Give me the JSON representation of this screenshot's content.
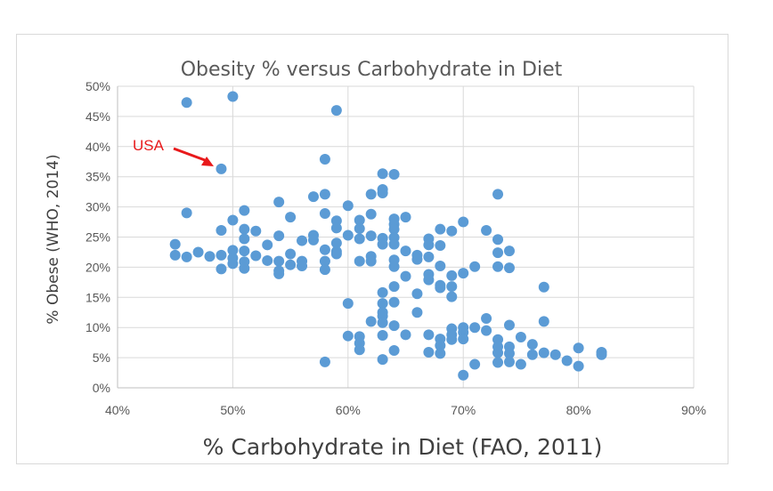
{
  "chart_data": {
    "type": "scatter",
    "title": "Obesity % versus Carbohydrate in Diet",
    "xlabel": "% Carbohydrate in Diet (FAO, 2011)",
    "ylabel": "% Obese (WHO, 2014)",
    "xlim": [
      40,
      90
    ],
    "ylim": [
      0,
      50
    ],
    "x_ticks": [
      40,
      50,
      60,
      70,
      80,
      90
    ],
    "y_ticks": [
      0,
      5,
      10,
      15,
      20,
      25,
      30,
      35,
      40,
      45,
      50
    ],
    "x_tick_labels": [
      "40%",
      "50%",
      "60%",
      "70%",
      "80%",
      "90%"
    ],
    "y_tick_labels": [
      "0%",
      "5%",
      "10%",
      "15%",
      "20%",
      "25%",
      "30%",
      "35%",
      "40%",
      "45%",
      "50%"
    ],
    "grid": true,
    "legend": "none",
    "marker_color": "#5b9bd5",
    "annotation": {
      "text": "USA",
      "color": "#e8191b",
      "x": 49,
      "y": 36.3
    },
    "points": [
      [
        46,
        47.3
      ],
      [
        50,
        48.3
      ],
      [
        59,
        46.0
      ],
      [
        58,
        37.9
      ],
      [
        49,
        36.3
      ],
      [
        63,
        35.5
      ],
      [
        64,
        35.4
      ],
      [
        63,
        32.9
      ],
      [
        63,
        32.3
      ],
      [
        58,
        32.1
      ],
      [
        62,
        32.1
      ],
      [
        73,
        32.1
      ],
      [
        57,
        31.7
      ],
      [
        54,
        30.8
      ],
      [
        60,
        30.2
      ],
      [
        46,
        29.0
      ],
      [
        51,
        29.4
      ],
      [
        58,
        28.9
      ],
      [
        62,
        28.8
      ],
      [
        55,
        28.3
      ],
      [
        64,
        28.0
      ],
      [
        65,
        28.3
      ],
      [
        50,
        27.8
      ],
      [
        59,
        27.7
      ],
      [
        61,
        27.8
      ],
      [
        70,
        27.5
      ],
      [
        64,
        27.1
      ],
      [
        59,
        26.5
      ],
      [
        61,
        26.4
      ],
      [
        49,
        26.1
      ],
      [
        51,
        26.3
      ],
      [
        52,
        26.0
      ],
      [
        64,
        26.3
      ],
      [
        68,
        26.3
      ],
      [
        69,
        26.0
      ],
      [
        72,
        26.1
      ],
      [
        57,
        25.3
      ],
      [
        62,
        25.2
      ],
      [
        54,
        25.2
      ],
      [
        60,
        25.3
      ],
      [
        63,
        24.8
      ],
      [
        64,
        24.9
      ],
      [
        67,
        24.7
      ],
      [
        73,
        24.6
      ],
      [
        51,
        24.7
      ],
      [
        56,
        24.4
      ],
      [
        61,
        24.7
      ],
      [
        45,
        23.8
      ],
      [
        53,
        23.7
      ],
      [
        57,
        24.5
      ],
      [
        59,
        24.0
      ],
      [
        63,
        23.8
      ],
      [
        64,
        23.8
      ],
      [
        67,
        23.7
      ],
      [
        68,
        23.6
      ],
      [
        47,
        22.5
      ],
      [
        50,
        22.8
      ],
      [
        51,
        22.7
      ],
      [
        58,
        22.9
      ],
      [
        59,
        22.6
      ],
      [
        65,
        22.7
      ],
      [
        66,
        22.0
      ],
      [
        55,
        22.2
      ],
      [
        45,
        22.0
      ],
      [
        46,
        21.7
      ],
      [
        48,
        21.8
      ],
      [
        49,
        22.0
      ],
      [
        52,
        21.9
      ],
      [
        59,
        22.2
      ],
      [
        62,
        21.8
      ],
      [
        67,
        21.7
      ],
      [
        73,
        22.4
      ],
      [
        74,
        22.7
      ],
      [
        50,
        21.5
      ],
      [
        53,
        21.1
      ],
      [
        54,
        21.0
      ],
      [
        56,
        21.0
      ],
      [
        58,
        21.0
      ],
      [
        61,
        21.0
      ],
      [
        62,
        21.0
      ],
      [
        64,
        21.2
      ],
      [
        66,
        21.3
      ],
      [
        50,
        20.6
      ],
      [
        51,
        20.9
      ],
      [
        55,
        20.4
      ],
      [
        56,
        20.2
      ],
      [
        64,
        20.1
      ],
      [
        68,
        20.2
      ],
      [
        71,
        20.1
      ],
      [
        73,
        20.1
      ],
      [
        74,
        19.9
      ],
      [
        49,
        19.7
      ],
      [
        51,
        19.8
      ],
      [
        54,
        19.4
      ],
      [
        58,
        19.6
      ],
      [
        65,
        18.5
      ],
      [
        67,
        18.8
      ],
      [
        69,
        18.6
      ],
      [
        70,
        19.0
      ],
      [
        54,
        18.9
      ],
      [
        67,
        17.9
      ],
      [
        68,
        17.0
      ],
      [
        68,
        16.6
      ],
      [
        64,
        16.8
      ],
      [
        69,
        16.8
      ],
      [
        77,
        16.7
      ],
      [
        63,
        15.8
      ],
      [
        66,
        15.6
      ],
      [
        69,
        15.1
      ],
      [
        60,
        14.0
      ],
      [
        63,
        14.0
      ],
      [
        64,
        14.2
      ],
      [
        63,
        12.5
      ],
      [
        66,
        12.5
      ],
      [
        63,
        11.9
      ],
      [
        62,
        11.0
      ],
      [
        72,
        11.5
      ],
      [
        77,
        11.0
      ],
      [
        64,
        10.3
      ],
      [
        63,
        10.8
      ],
      [
        70,
        10.0
      ],
      [
        71,
        10.0
      ],
      [
        74,
        10.4
      ],
      [
        69,
        9.8
      ],
      [
        67,
        8.8
      ],
      [
        69,
        8.8
      ],
      [
        70,
        9.2
      ],
      [
        72,
        9.5
      ],
      [
        60,
        8.6
      ],
      [
        61,
        8.5
      ],
      [
        63,
        8.7
      ],
      [
        65,
        8.8
      ],
      [
        68,
        8.1
      ],
      [
        69,
        8.0
      ],
      [
        70,
        8.1
      ],
      [
        73,
        8.0
      ],
      [
        75,
        8.4
      ],
      [
        61,
        7.4
      ],
      [
        68,
        7.0
      ],
      [
        73,
        6.8
      ],
      [
        74,
        6.8
      ],
      [
        76,
        7.2
      ],
      [
        61,
        6.3
      ],
      [
        64,
        6.2
      ],
      [
        67,
        5.9
      ],
      [
        68,
        5.7
      ],
      [
        73,
        5.8
      ],
      [
        74,
        5.7
      ],
      [
        76,
        5.5
      ],
      [
        77,
        5.8
      ],
      [
        78,
        5.5
      ],
      [
        80,
        6.6
      ],
      [
        82,
        5.9
      ],
      [
        82,
        5.5
      ],
      [
        58,
        4.3
      ],
      [
        63,
        4.7
      ],
      [
        71,
        3.9
      ],
      [
        73,
        4.2
      ],
      [
        74,
        4.3
      ],
      [
        75,
        3.9
      ],
      [
        79,
        4.5
      ],
      [
        80,
        3.6
      ],
      [
        70,
        2.1
      ]
    ]
  }
}
